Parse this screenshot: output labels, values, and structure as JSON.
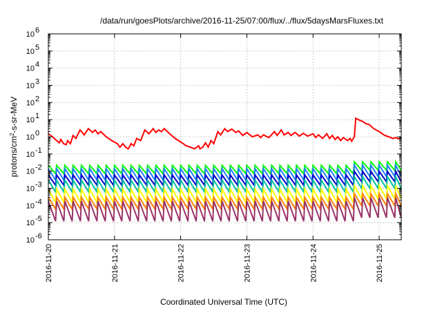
{
  "chart_data": {
    "type": "line",
    "title": "/data/run/goesPlots/archive/2016-11-25/07:00/flux/../flux/5daysMarsFluxes.txt",
    "xlabel": "Coordinated Universal Time (UTC)",
    "ylabel": "protons/cm²-s-sr-MeV",
    "y_scale": "log",
    "ylim": [
      1e-06,
      1000000.0
    ],
    "xlim": [
      "2016-11-20T00:00",
      "2016-11-25T08:00"
    ],
    "x_ticks": [
      "2016-11-20",
      "2016-11-21",
      "2016-11-22",
      "2016-11-23",
      "2016-11-24",
      "2016-11-25"
    ],
    "y_ticks": [
      {
        "base": "10",
        "exp": "-6"
      },
      {
        "base": "10",
        "exp": "-5"
      },
      {
        "base": "10",
        "exp": "-4"
      },
      {
        "base": "10",
        "exp": "-3"
      },
      {
        "base": "10",
        "exp": "-2"
      },
      {
        "base": "10",
        "exp": "-1"
      },
      {
        "base": "10",
        "exp": "0"
      },
      {
        "base": "10",
        "exp": "1"
      },
      {
        "base": "10",
        "exp": "2"
      },
      {
        "base": "10",
        "exp": "3"
      },
      {
        "base": "10",
        "exp": "4"
      },
      {
        "base": "10",
        "exp": "5"
      },
      {
        "base": "10",
        "exp": "6"
      }
    ],
    "grid": true,
    "series": [
      {
        "color": "#ff0000",
        "points": [
          [
            "2016-11-20T00:00",
            1.5
          ],
          [
            "2016-11-20T01:30",
            1.0
          ],
          [
            "2016-11-20T03:00",
            0.6
          ],
          [
            "2016-11-20T04:00",
            0.45
          ],
          [
            "2016-11-20T04:30",
            0.7
          ],
          [
            "2016-11-20T05:30",
            0.4
          ],
          [
            "2016-11-20T06:30",
            0.35
          ],
          [
            "2016-11-20T07:00",
            0.6
          ],
          [
            "2016-11-20T08:00",
            0.4
          ],
          [
            "2016-11-20T09:00",
            1.2
          ],
          [
            "2016-11-20T10:00",
            0.8
          ],
          [
            "2016-11-20T11:30",
            2.5
          ],
          [
            "2016-11-20T13:00",
            1.3
          ],
          [
            "2016-11-20T14:30",
            3.0
          ],
          [
            "2016-11-20T16:00",
            1.8
          ],
          [
            "2016-11-20T17:00",
            2.5
          ],
          [
            "2016-11-20T18:00",
            1.5
          ],
          [
            "2016-11-20T19:00",
            2.0
          ],
          [
            "2016-11-20T21:00",
            1.0
          ],
          [
            "2016-11-20T23:00",
            0.6
          ],
          [
            "2016-11-21T01:00",
            0.4
          ],
          [
            "2016-11-21T02:00",
            0.25
          ],
          [
            "2016-11-21T03:00",
            0.4
          ],
          [
            "2016-11-21T04:00",
            0.25
          ],
          [
            "2016-11-21T05:00",
            0.2
          ],
          [
            "2016-11-21T06:00",
            0.4
          ],
          [
            "2016-11-21T07:00",
            0.3
          ],
          [
            "2016-11-21T08:00",
            0.8
          ],
          [
            "2016-11-21T09:30",
            0.6
          ],
          [
            "2016-11-21T11:00",
            2.5
          ],
          [
            "2016-11-21T12:30",
            1.5
          ],
          [
            "2016-11-21T14:00",
            3.0
          ],
          [
            "2016-11-21T15:00",
            1.8
          ],
          [
            "2016-11-21T16:00",
            2.5
          ],
          [
            "2016-11-21T17:00",
            2.0
          ],
          [
            "2016-11-21T18:00",
            3.0
          ],
          [
            "2016-11-21T20:00",
            1.5
          ],
          [
            "2016-11-21T22:00",
            0.8
          ],
          [
            "2016-11-22T00:00",
            0.5
          ],
          [
            "2016-11-22T02:00",
            0.3
          ],
          [
            "2016-11-22T03:30",
            0.25
          ],
          [
            "2016-11-22T05:00",
            0.2
          ],
          [
            "2016-11-22T06:30",
            0.3
          ],
          [
            "2016-11-22T07:00",
            0.2
          ],
          [
            "2016-11-22T08:00",
            0.25
          ],
          [
            "2016-11-22T09:00",
            0.45
          ],
          [
            "2016-11-22T10:00",
            0.25
          ],
          [
            "2016-11-22T11:00",
            0.6
          ],
          [
            "2016-11-22T12:00",
            0.4
          ],
          [
            "2016-11-22T13:30",
            2.0
          ],
          [
            "2016-11-22T14:30",
            1.3
          ],
          [
            "2016-11-22T16:00",
            3.0
          ],
          [
            "2016-11-22T17:00",
            2.0
          ],
          [
            "2016-11-22T18:30",
            2.8
          ],
          [
            "2016-11-22T20:00",
            1.8
          ],
          [
            "2016-11-22T21:00",
            2.2
          ],
          [
            "2016-11-22T22:30",
            1.2
          ],
          [
            "2016-11-23T00:00",
            1.8
          ],
          [
            "2016-11-23T02:00",
            1.0
          ],
          [
            "2016-11-23T04:00",
            1.3
          ],
          [
            "2016-11-23T05:00",
            0.9
          ],
          [
            "2016-11-23T06:00",
            1.3
          ],
          [
            "2016-11-23T08:00",
            0.9
          ],
          [
            "2016-11-23T10:00",
            2.0
          ],
          [
            "2016-11-23T11:00",
            1.2
          ],
          [
            "2016-11-23T12:30",
            2.5
          ],
          [
            "2016-11-23T13:30",
            1.3
          ],
          [
            "2016-11-23T15:00",
            1.8
          ],
          [
            "2016-11-23T16:00",
            1.2
          ],
          [
            "2016-11-23T17:30",
            1.8
          ],
          [
            "2016-11-23T19:00",
            1.1
          ],
          [
            "2016-11-23T20:30",
            1.6
          ],
          [
            "2016-11-23T22:00",
            1.1
          ],
          [
            "2016-11-24T00:00",
            1.5
          ],
          [
            "2016-11-24T01:00",
            0.9
          ],
          [
            "2016-11-24T02:00",
            1.3
          ],
          [
            "2016-11-24T03:30",
            0.8
          ],
          [
            "2016-11-24T05:00",
            1.5
          ],
          [
            "2016-11-24T06:00",
            0.8
          ],
          [
            "2016-11-24T07:00",
            1.2
          ],
          [
            "2016-11-24T08:00",
            0.7
          ],
          [
            "2016-11-24T09:00",
            1.0
          ],
          [
            "2016-11-24T10:00",
            0.6
          ],
          [
            "2016-11-24T11:00",
            0.9
          ],
          [
            "2016-11-24T12:30",
            0.6
          ],
          [
            "2016-11-24T13:30",
            0.8
          ],
          [
            "2016-11-24T14:00",
            0.55
          ],
          [
            "2016-11-24T15:00",
            1.0
          ],
          [
            "2016-11-24T15:30",
            12
          ],
          [
            "2016-11-24T17:00",
            9
          ],
          [
            "2016-11-24T18:00",
            8
          ],
          [
            "2016-11-24T19:00",
            6
          ],
          [
            "2016-11-24T20:30",
            5
          ],
          [
            "2016-11-24T22:00",
            3
          ],
          [
            "2016-11-25T00:00",
            2.0
          ],
          [
            "2016-11-25T02:00",
            1.2
          ],
          [
            "2016-11-25T03:30",
            1.0
          ],
          [
            "2016-11-25T05:00",
            0.8
          ],
          [
            "2016-11-25T06:00",
            0.9
          ],
          [
            "2016-11-25T07:00",
            0.75
          ],
          [
            "2016-11-25T07:30",
            0.85
          ],
          [
            "2016-11-25T08:00",
            0.8
          ]
        ]
      },
      {
        "color": "#00ff00",
        "band": [
          0.007,
          0.022
        ]
      },
      {
        "color": "#2080ff",
        "band": [
          0.003,
          0.014
        ]
      },
      {
        "color": "#0000c8",
        "band": [
          0.0015,
          0.006
        ]
      },
      {
        "color": "#00c0a0",
        "band": [
          0.0006,
          0.003
        ]
      },
      {
        "color": "#ffff00",
        "band": [
          0.00015,
          0.0009
        ]
      },
      {
        "color": "#ff8000",
        "band": [
          6e-05,
          0.0003
        ]
      },
      {
        "color": "#993366",
        "band": [
          1.2e-05,
          0.00018
        ]
      }
    ]
  }
}
